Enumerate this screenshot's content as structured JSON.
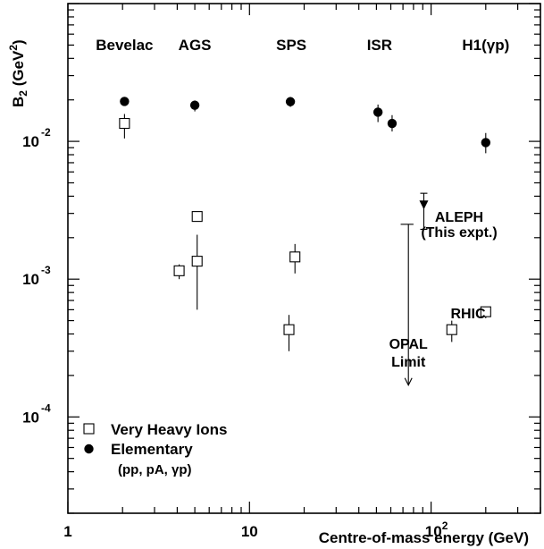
{
  "chart_data": {
    "type": "scatter",
    "x_scale": "log",
    "y_scale": "log",
    "xlim": [
      1,
      400
    ],
    "ylim": [
      2e-05,
      0.1
    ],
    "xlabel": "Centre-of-mass energy (GeV)",
    "ylabel_base": "B",
    "ylabel_sub": "2",
    "ylabel_unit_open": " (GeV",
    "ylabel_unit_sup": "2",
    "ylabel_unit_close": ")",
    "x_ticks": [
      {
        "base": "1",
        "exp": "",
        "value": 1
      },
      {
        "base": "10",
        "exp": "",
        "value": 10
      },
      {
        "base": "10",
        "exp": "2",
        "value": 100
      }
    ],
    "y_ticks": [
      {
        "base": "10",
        "exp": "-2",
        "value": 0.01
      },
      {
        "base": "10",
        "exp": "-3",
        "value": 0.001
      },
      {
        "base": "10",
        "exp": "-4",
        "value": 0.0001
      }
    ],
    "experiment_labels": [
      {
        "text": "Bevelac",
        "x": 2.05
      },
      {
        "text": "AGS",
        "x": 5.0
      },
      {
        "text": "SPS",
        "x": 17.0
      },
      {
        "text": "ISR",
        "x": 52
      },
      {
        "text": "H1(γp)",
        "x": 200
      }
    ],
    "series": [
      {
        "name": "Very Heavy Ions",
        "marker": "open-square",
        "points": [
          {
            "x": 2.05,
            "y": 0.0135,
            "ylo": 0.0105,
            "yhi": 0.0158
          },
          {
            "x": 4.1,
            "y": 0.00115,
            "ylo": 0.001,
            "yhi": 0.00128
          },
          {
            "x": 5.15,
            "y": 0.00285,
            "ylo": 0.00285,
            "yhi": 0.00285
          },
          {
            "x": 5.15,
            "y": 0.00135,
            "ylo": 0.0006,
            "yhi": 0.0021
          },
          {
            "x": 16.5,
            "y": 0.00043,
            "ylo": 0.0003,
            "yhi": 0.00055
          },
          {
            "x": 17.8,
            "y": 0.00145,
            "ylo": 0.0011,
            "yhi": 0.0018
          },
          {
            "x": 130,
            "y": 0.00043,
            "ylo": 0.00035,
            "yhi": 0.0005
          },
          {
            "x": 200,
            "y": 0.00058,
            "ylo": 0.00052,
            "yhi": 0.00063
          }
        ]
      },
      {
        "name": "Elementary",
        "name_sub": "(pp, pA, γp)",
        "marker": "filled-circle",
        "points": [
          {
            "x": 2.05,
            "y": 0.0195,
            "ylo": 0.0195,
            "yhi": 0.0195
          },
          {
            "x": 5.0,
            "y": 0.0183,
            "ylo": 0.0165,
            "yhi": 0.0198
          },
          {
            "x": 16.8,
            "y": 0.0194,
            "ylo": 0.0178,
            "yhi": 0.021
          },
          {
            "x": 51,
            "y": 0.0163,
            "ylo": 0.0138,
            "yhi": 0.0185
          },
          {
            "x": 61,
            "y": 0.0135,
            "ylo": 0.0118,
            "yhi": 0.0155
          },
          {
            "x": 200,
            "y": 0.0098,
            "ylo": 0.0082,
            "yhi": 0.0115
          }
        ]
      }
    ],
    "aleph": {
      "x": 91.2,
      "y_marker": 0.0034,
      "y_bar_top": 0.0042,
      "y_bar_bottom": 0.0023,
      "label_line1": "ALEPH",
      "label_line2": "(This expt.)"
    },
    "opal": {
      "x": 75,
      "x_cap_left": 68,
      "x_cap_right": 80,
      "y_top": 0.0025,
      "y_bottom": 0.00017,
      "label_line1": "OPAL",
      "label_line2": "Limit"
    },
    "rhic_label": "RHIC",
    "legend_position": "bottom-left"
  }
}
